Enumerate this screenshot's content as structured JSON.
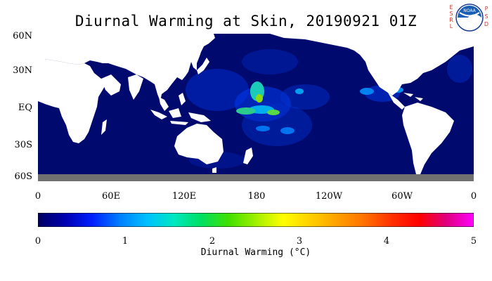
{
  "title": "Diurnal Warming at Skin, 20190921 01Z",
  "logo": {
    "text": "NOAA",
    "side_left": [
      "E",
      "S",
      "R",
      "L"
    ],
    "side_right": [
      "P",
      "S",
      "D"
    ]
  },
  "map": {
    "lat_ticks": [
      "60N",
      "30N",
      "EQ",
      "30S",
      "60S"
    ],
    "lon_ticks": [
      "0",
      "60E",
      "120E",
      "180",
      "120W",
      "60W",
      "0"
    ],
    "colors": {
      "ocean": "#000a6e",
      "land": "#ffffff",
      "missing": "#707070"
    }
  },
  "colorbar": {
    "ticks": [
      "0",
      "1",
      "2",
      "3",
      "4",
      "5"
    ],
    "label": "Diurnal Warming (°C)",
    "range": [
      0,
      5
    ],
    "colors": [
      "#000060",
      "#0000b0",
      "#0020ff",
      "#0080ff",
      "#00c0ff",
      "#00e8c0",
      "#00e060",
      "#40e000",
      "#a0f000",
      "#ffff00",
      "#ffd000",
      "#ffa000",
      "#ff7000",
      "#ff3000",
      "#ff0000",
      "#e00080",
      "#ff00ff"
    ]
  }
}
